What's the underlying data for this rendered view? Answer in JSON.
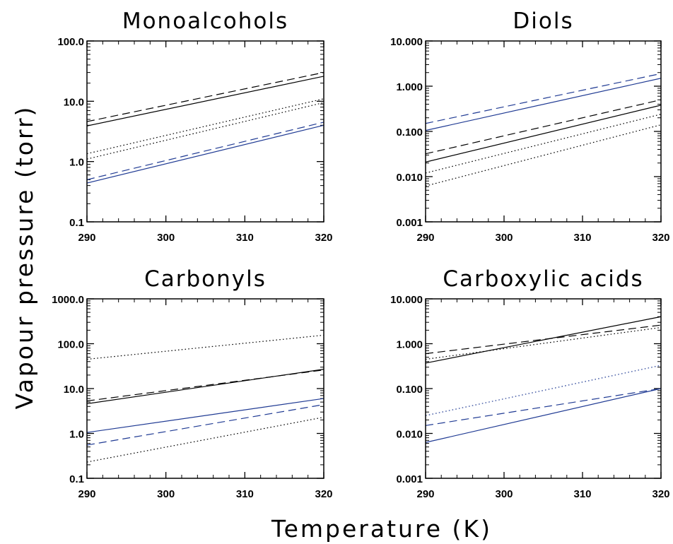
{
  "figure": {
    "xlabel": "Temperature (K)",
    "ylabel": "Vapour pressure (torr)"
  },
  "colors": {
    "black": "#000000",
    "blue": "#1f3a93"
  },
  "chart_data": [
    {
      "type": "line",
      "title": "Monoalcohols",
      "yscale": "log",
      "xlim": [
        290,
        320
      ],
      "ylim": [
        0.1,
        100
      ],
      "xticks": [
        "290",
        "300",
        "310",
        "320"
      ],
      "yticks": [
        "0.1",
        "1.0",
        "10.0",
        "100.0"
      ],
      "x": [
        290,
        320
      ],
      "series": [
        {
          "color": "black",
          "style": "solid",
          "values": [
            3.9,
            26
          ]
        },
        {
          "color": "black",
          "style": "dashed",
          "values": [
            4.6,
            30
          ]
        },
        {
          "color": "black",
          "style": "dotted",
          "values": [
            1.35,
            11
          ]
        },
        {
          "color": "black",
          "style": "dotted",
          "values": [
            1.1,
            9.5
          ]
        },
        {
          "color": "blue",
          "style": "solid",
          "values": [
            0.44,
            4.0
          ]
        },
        {
          "color": "blue",
          "style": "dashed",
          "values": [
            0.5,
            4.5
          ]
        }
      ]
    },
    {
      "type": "line",
      "title": "Diols",
      "yscale": "log",
      "xlim": [
        290,
        320
      ],
      "ylim": [
        0.001,
        10
      ],
      "xticks": [
        "290",
        "300",
        "310",
        "320"
      ],
      "yticks": [
        "0.001",
        "0.010",
        "0.100",
        "1.000",
        "10.000"
      ],
      "x": [
        290,
        320
      ],
      "series": [
        {
          "color": "blue",
          "style": "dashed",
          "values": [
            0.15,
            1.9
          ]
        },
        {
          "color": "blue",
          "style": "solid",
          "values": [
            0.105,
            1.5
          ]
        },
        {
          "color": "black",
          "style": "dashed",
          "values": [
            0.032,
            0.5
          ]
        },
        {
          "color": "black",
          "style": "solid",
          "values": [
            0.021,
            0.38
          ]
        },
        {
          "color": "black",
          "style": "dotted",
          "values": [
            0.012,
            0.24
          ]
        },
        {
          "color": "black",
          "style": "dotted",
          "values": [
            0.0062,
            0.14
          ]
        }
      ]
    },
    {
      "type": "line",
      "title": "Carbonyls",
      "yscale": "log",
      "xlim": [
        290,
        320
      ],
      "ylim": [
        0.1,
        1000
      ],
      "xticks": [
        "290",
        "300",
        "310",
        "320"
      ],
      "yticks": [
        "0.1",
        "1.0",
        "10.0",
        "100.0",
        "1000.0"
      ],
      "x": [
        290,
        320
      ],
      "series": [
        {
          "color": "black",
          "style": "dotted",
          "values": [
            45,
            155
          ]
        },
        {
          "color": "black",
          "style": "dashed",
          "values": [
            5.3,
            26
          ]
        },
        {
          "color": "black",
          "style": "solid",
          "values": [
            4.6,
            27
          ]
        },
        {
          "color": "blue",
          "style": "solid",
          "values": [
            1.05,
            6.0
          ]
        },
        {
          "color": "blue",
          "style": "dashed",
          "values": [
            0.55,
            4.4
          ]
        },
        {
          "color": "black",
          "style": "dotted",
          "values": [
            0.23,
            2.3
          ]
        }
      ]
    },
    {
      "type": "line",
      "title": "Carboxylic acids",
      "yscale": "log",
      "xlim": [
        290,
        320
      ],
      "ylim": [
        0.001,
        10
      ],
      "xticks": [
        "290",
        "300",
        "310",
        "320"
      ],
      "yticks": [
        "0.001",
        "0.010",
        "0.100",
        "1.000",
        "10.000"
      ],
      "x": [
        290,
        320
      ],
      "series": [
        {
          "color": "black",
          "style": "solid",
          "values": [
            0.37,
            4.0
          ]
        },
        {
          "color": "black",
          "style": "dashed",
          "values": [
            0.6,
            2.6
          ]
        },
        {
          "color": "black",
          "style": "dotted",
          "values": [
            0.45,
            2.3
          ]
        },
        {
          "color": "blue",
          "style": "dotted",
          "values": [
            0.025,
            0.33
          ]
        },
        {
          "color": "blue",
          "style": "dashed",
          "values": [
            0.015,
            0.1
          ]
        },
        {
          "color": "blue",
          "style": "solid",
          "values": [
            0.0063,
            0.1
          ]
        }
      ]
    }
  ]
}
